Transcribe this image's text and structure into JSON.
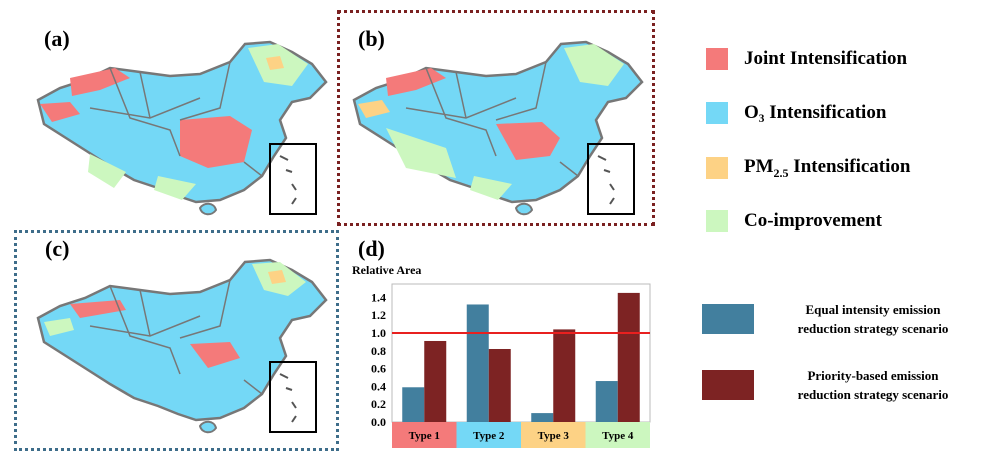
{
  "panels": {
    "a": "(a)",
    "b": "(b)",
    "c": "(c)",
    "d": "(d)"
  },
  "legend": {
    "items": [
      {
        "label": "Joint Intensification",
        "color": "#f47a7a"
      },
      {
        "label": "O₃ Intensification",
        "color": "#74d8f6"
      },
      {
        "label_main": "PM",
        "label_sub": "2.5",
        "label_rest": " Intensification",
        "color": "#fdd285"
      },
      {
        "label": "Co-improvement",
        "color": "#ccf7bf"
      }
    ]
  },
  "colors": {
    "equal": "#427f9e",
    "priority": "#7d2323",
    "refline": "#e8201f",
    "map_land": "#74d8f6",
    "map_joint": "#f47a7a",
    "map_pm": "#fdd285",
    "map_co": "#ccf7bf",
    "map_border": "#777777"
  },
  "chart_data": {
    "type": "bar",
    "ylabel": "Relative Area",
    "ylim": [
      0,
      1.55
    ],
    "yticks": [
      "0.0",
      "0.2",
      "0.4",
      "0.6",
      "0.8",
      "1.0",
      "1.2",
      "1.4"
    ],
    "yticks_values": [
      0,
      0.2,
      0.4,
      0.6,
      0.8,
      1.0,
      1.2,
      1.4
    ],
    "reference_line": 1.0,
    "categories": [
      "Type 1",
      "Type 2",
      "Type 3",
      "Type 4"
    ],
    "category_colors": [
      "#f47a7a",
      "#74d8f6",
      "#fdd285",
      "#ccf7bf"
    ],
    "series": [
      {
        "name": "Equal intensity emission reduction strategy scenario",
        "values": [
          0.39,
          1.32,
          0.1,
          0.46
        ]
      },
      {
        "name": "Priority-based emission reduction strategy scenario",
        "values": [
          0.91,
          0.82,
          1.04,
          1.45
        ]
      }
    ]
  },
  "bar_legend": {
    "equal_line1": "Equal intensity emission",
    "equal_line2": "reduction strategy scenario",
    "priority_line1": "Priority-based emission",
    "priority_line2": "reduction strategy scenario"
  }
}
